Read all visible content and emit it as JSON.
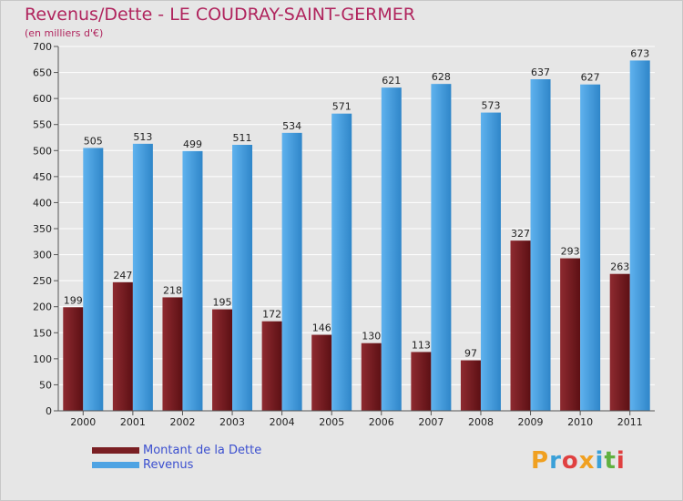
{
  "chart_data": {
    "type": "bar",
    "title": "Revenus/Dette - LE COUDRAY-SAINT-GERMER",
    "subtitle": "(en milliers d'€)",
    "categories": [
      "2000",
      "2001",
      "2002",
      "2003",
      "2004",
      "2005",
      "2006",
      "2007",
      "2008",
      "2009",
      "2010",
      "2011"
    ],
    "series": [
      {
        "name": "Montant de la Dette",
        "color": "#7a1f23",
        "values": [
          199,
          247,
          218,
          195,
          172,
          146,
          130,
          113,
          97,
          327,
          293,
          263
        ]
      },
      {
        "name": "Revenus",
        "color": "#4ea3e3",
        "values": [
          505,
          513,
          499,
          511,
          534,
          571,
          621,
          628,
          573,
          637,
          627,
          673
        ]
      }
    ],
    "ylim": [
      0,
      700
    ],
    "yticks": [
      0,
      50,
      100,
      150,
      200,
      250,
      300,
      350,
      400,
      450,
      500,
      550,
      600,
      650,
      700
    ],
    "grid": true,
    "legend": "bottom-left"
  },
  "logo": {
    "text": "Proxiti",
    "colors": [
      "#f0a020",
      "#3aa0d8",
      "#e04040",
      "#f0a020",
      "#3aa0d8",
      "#60b040",
      "#e04040"
    ]
  }
}
